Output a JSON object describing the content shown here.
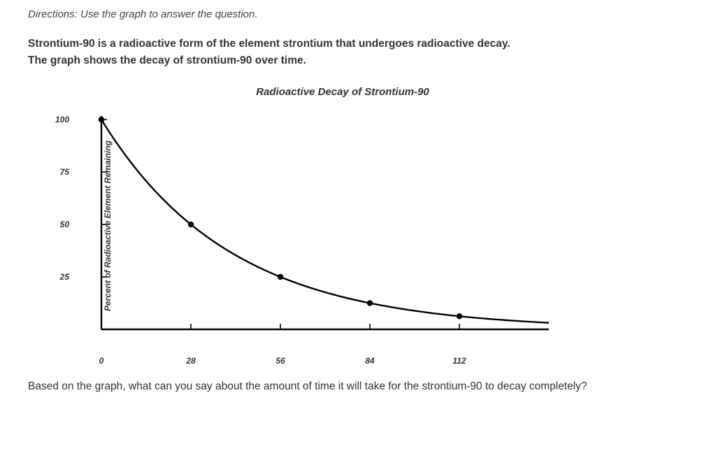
{
  "directions": "Directions: Use the graph to answer the question.",
  "intro_line1": "Strontium-90 is a radioactive form of the element strontium that undergoes radioactive decay.",
  "intro_line2": "The graph shows the decay of strontium-90 over time.",
  "chart": {
    "type": "line",
    "title": "Radioactive Decay of Strontium-90",
    "y_label": "Percent of Radioactive Element Remaining",
    "y_ticks": [
      100,
      75,
      50,
      25
    ],
    "x_ticks": [
      0,
      28,
      56,
      84,
      112
    ],
    "ylim": [
      0,
      100
    ],
    "xlim": [
      0,
      140
    ],
    "points": [
      {
        "x": 0,
        "y": 100
      },
      {
        "x": 28,
        "y": 50
      },
      {
        "x": 56,
        "y": 25
      },
      {
        "x": 84,
        "y": 12.5
      },
      {
        "x": 112,
        "y": 6.25
      }
    ],
    "line_color": "#000000",
    "line_width": 2.4,
    "marker_radius": 4.2,
    "marker_color": "#000000",
    "axis_color": "#000000",
    "axis_width": 2.4,
    "background_color": "#ffffff",
    "font_weight": "900",
    "font_style": "italic",
    "title_fontsize": 15,
    "label_fontsize": 12
  },
  "question": "Based on the graph, what can you say about the amount of time it will take for the strontium-90 to decay completely?"
}
